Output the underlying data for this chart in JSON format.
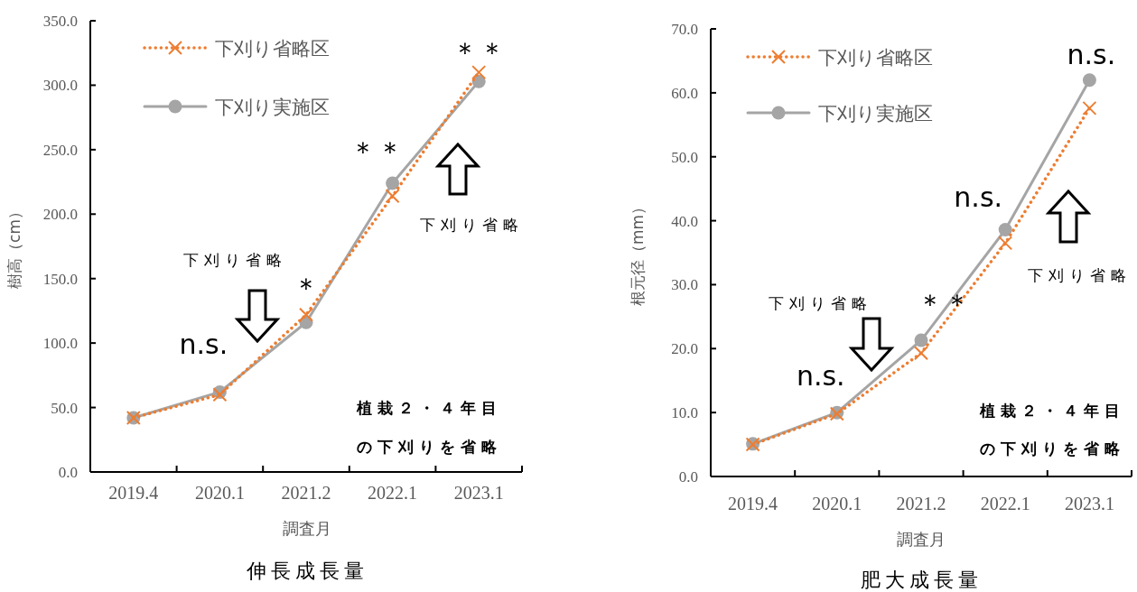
{
  "chart_data": [
    {
      "type": "line",
      "title": "伸長成長量",
      "xlabel": "調査月",
      "ylabel": "樹高（cm）",
      "categories": [
        "2019.4",
        "2020.1",
        "2021.2",
        "2022.1",
        "2023.1"
      ],
      "series": [
        {
          "name": "下刈り省略区",
          "color": "#ed7d31",
          "marker": "cross",
          "line_style": "dotted",
          "values": [
            42,
            60,
            122,
            214,
            310
          ]
        },
        {
          "name": "下刈り実施区",
          "color": "#a5a5a5",
          "marker": "circle",
          "line_style": "solid",
          "values": [
            42,
            62,
            116,
            224,
            303
          ]
        }
      ],
      "ylim": [
        0,
        350
      ],
      "yticks": [
        {
          "value": 0,
          "label": "0.0"
        },
        {
          "value": 50,
          "label": "50.0"
        },
        {
          "value": 100,
          "label": "100.0"
        },
        {
          "value": 150,
          "label": "150.0"
        },
        {
          "value": 200,
          "label": "200.0"
        },
        {
          "value": 250,
          "label": "250.0"
        },
        {
          "value": 300,
          "label": "300.0"
        },
        {
          "value": 350,
          "label": "350.0"
        }
      ],
      "legend": "top left",
      "grid": false,
      "annotations": [
        {
          "text": "n.s.",
          "x": "2020.1",
          "y": 62
        },
        {
          "text": "＊",
          "x": "2021.2",
          "y": 116
        },
        {
          "text": "＊＊",
          "x": "2022.1",
          "y": 224
        },
        {
          "text": "＊＊",
          "x": "2023.1",
          "y": 310
        },
        "下刈り省略",
        "下刈り省略",
        "植栽２・４年目",
        "の下刈りを省略"
      ]
    },
    {
      "type": "line",
      "title": "肥大成長量",
      "xlabel": "調査月",
      "ylabel": "根元径（mm）",
      "categories": [
        "2019.4",
        "2020.1",
        "2021.2",
        "2022.1",
        "2023.1"
      ],
      "series": [
        {
          "name": "下刈り省略区",
          "color": "#ed7d31",
          "marker": "cross",
          "line_style": "dotted",
          "values": [
            5.0,
            9.8,
            19.3,
            36.5,
            57.6
          ]
        },
        {
          "name": "下刈り実施区",
          "color": "#a5a5a5",
          "marker": "circle",
          "line_style": "solid",
          "values": [
            5.1,
            10.0,
            21.3,
            38.6,
            62.0
          ]
        }
      ],
      "ylim": [
        0,
        70
      ],
      "yticks": [
        {
          "value": 0,
          "label": "0.0"
        },
        {
          "value": 10,
          "label": "10.0"
        },
        {
          "value": 20,
          "label": "20.0"
        },
        {
          "value": 30,
          "label": "30.0"
        },
        {
          "value": 40,
          "label": "40.0"
        },
        {
          "value": 50,
          "label": "50.0"
        },
        {
          "value": 60,
          "label": "60.0"
        },
        {
          "value": 70,
          "label": "70.0"
        }
      ],
      "legend": "top left",
      "grid": false,
      "annotations": [
        {
          "text": "n.s.",
          "x": "2020.1",
          "y": 10.0
        },
        {
          "text": "＊＊",
          "x": "2021.2",
          "y": 21.3
        },
        {
          "text": "n.s.",
          "x": "2022.1",
          "y": 38.6
        },
        {
          "text": "n.s.",
          "x": "2023.1",
          "y": 62.0
        },
        "下刈り省略",
        "下刈り省略",
        "植栽２・４年目",
        "の下刈りを省略"
      ]
    }
  ]
}
